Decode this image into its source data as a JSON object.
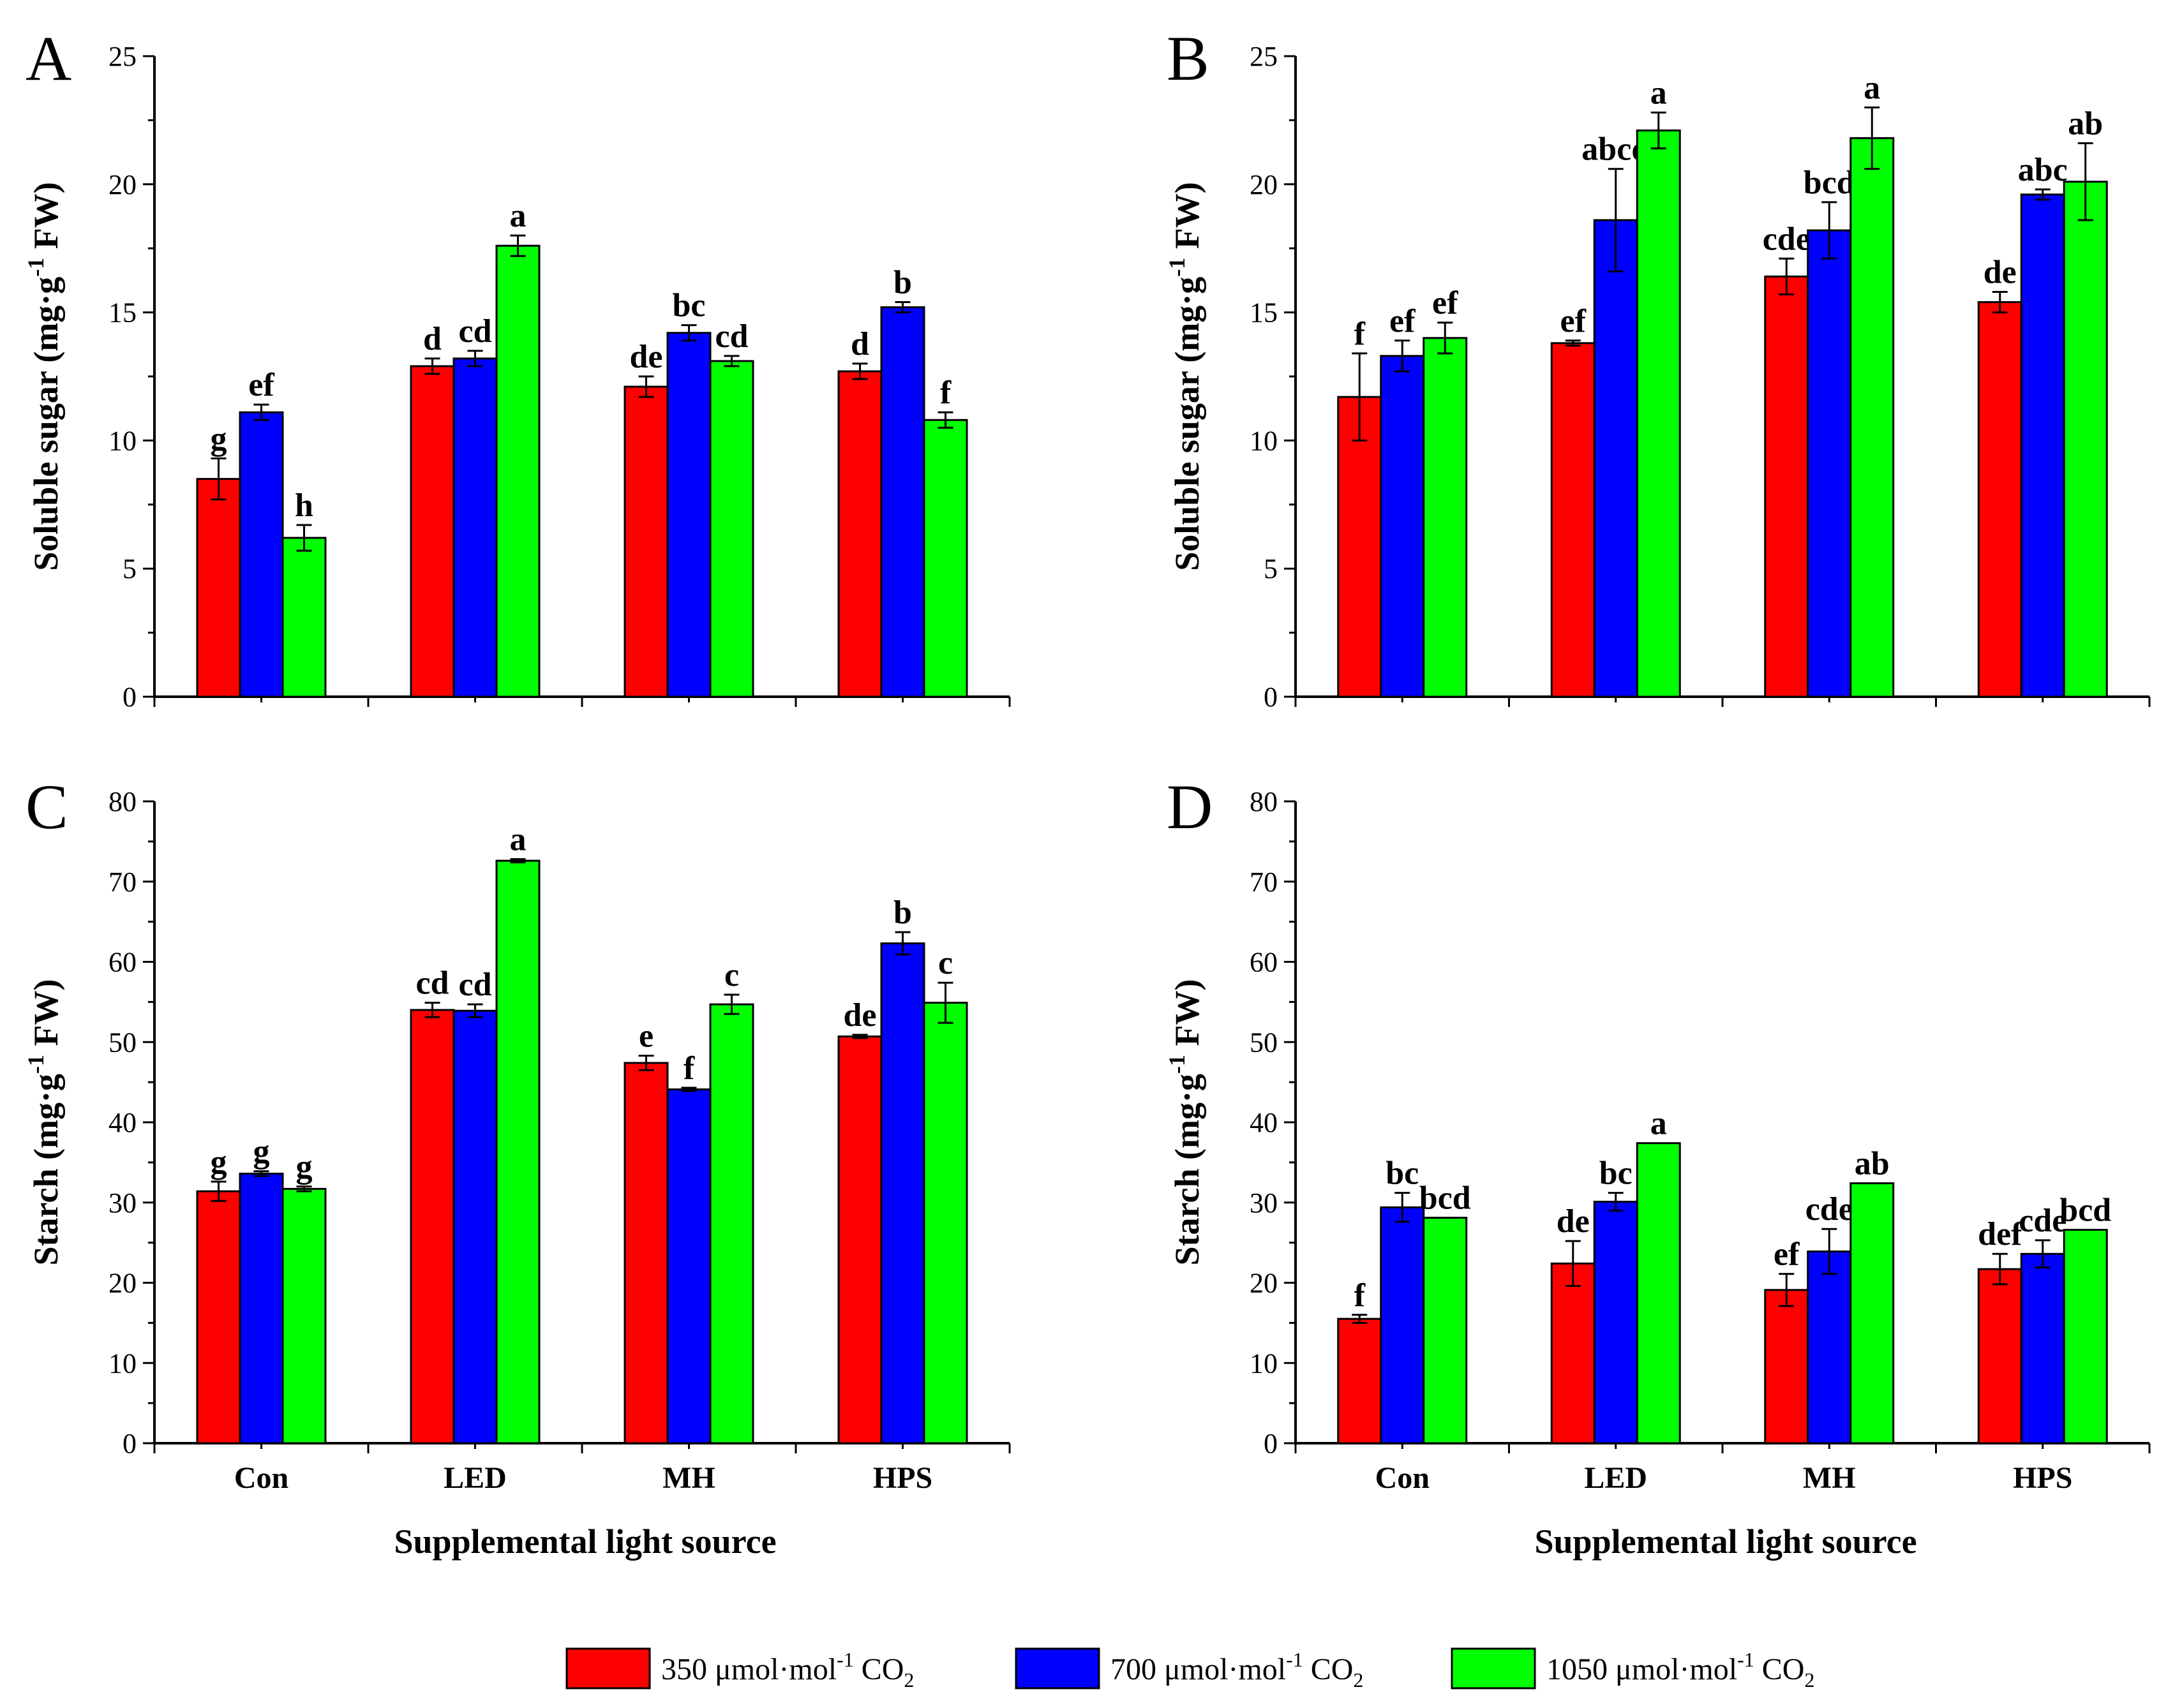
{
  "chart_data": [
    {
      "panel": "A",
      "type": "bar",
      "categories": [
        "Con",
        "LED",
        "MH",
        "HPS"
      ],
      "ylabel": "Soluble sugar (mg·g-1 FW)",
      "ylabel_parts": {
        "pre": "Soluble sugar (mg·g",
        "sup": "-1",
        "post": " FW)"
      },
      "xlabel": "",
      "ylim": [
        0,
        25
      ],
      "yticks": [
        0,
        5,
        10,
        15,
        20,
        25
      ],
      "series": [
        {
          "name": "350 μmol·mol-1 CO2",
          "values": [
            8.5,
            12.9,
            12.1,
            12.7
          ],
          "errors": [
            0.8,
            0.3,
            0.4,
            0.3
          ],
          "labels": [
            "g",
            "d",
            "de",
            "d"
          ]
        },
        {
          "name": "700 μmol·mol-1 CO2",
          "values": [
            11.1,
            13.2,
            14.2,
            15.2
          ],
          "errors": [
            0.3,
            0.3,
            0.3,
            0.2
          ],
          "labels": [
            "ef",
            "cd",
            "bc",
            "b"
          ]
        },
        {
          "name": "1050 μmol·mol-1 CO2",
          "values": [
            6.2,
            17.6,
            13.1,
            10.8
          ],
          "errors": [
            0.5,
            0.4,
            0.2,
            0.3
          ],
          "labels": [
            "h",
            "a",
            "cd",
            "f"
          ]
        }
      ]
    },
    {
      "panel": "B",
      "type": "bar",
      "categories": [
        "Con",
        "LED",
        "MH",
        "HPS"
      ],
      "ylabel": "Soluble sugar (mg·g-1 FW)",
      "ylabel_parts": {
        "pre": "Soluble sugar (mg·g",
        "sup": "-1",
        "post": " FW)"
      },
      "xlabel": "",
      "ylim": [
        0,
        25
      ],
      "yticks": [
        0,
        5,
        10,
        15,
        20,
        25
      ],
      "series": [
        {
          "name": "350 μmol·mol-1 CO2",
          "values": [
            11.7,
            13.8,
            16.4,
            15.4
          ],
          "errors": [
            1.7,
            0.1,
            0.7,
            0.4
          ],
          "labels": [
            "f",
            "ef",
            "cde",
            "de"
          ]
        },
        {
          "name": "700 μmol·mol-1 CO2",
          "values": [
            13.3,
            18.6,
            18.2,
            19.6
          ],
          "errors": [
            0.6,
            2.0,
            1.1,
            0.2
          ],
          "labels": [
            "ef",
            "abcd",
            "bcd",
            "abc"
          ]
        },
        {
          "name": "1050 μmol·mol-1 CO2",
          "values": [
            14.0,
            22.1,
            21.8,
            20.1
          ],
          "errors": [
            0.6,
            0.7,
            1.2,
            1.5
          ],
          "labels": [
            "ef",
            "a",
            "a",
            "ab"
          ]
        }
      ]
    },
    {
      "panel": "C",
      "type": "bar",
      "categories": [
        "Con",
        "LED",
        "MH",
        "HPS"
      ],
      "ylabel": "Starch (mg·g-1 FW)",
      "ylabel_parts": {
        "pre": "Starch (mg·g",
        "sup": "-1",
        "post": " FW)"
      },
      "xlabel": "Supplemental light source",
      "ylim": [
        0,
        80
      ],
      "yticks": [
        0,
        10,
        20,
        30,
        40,
        50,
        60,
        70,
        80
      ],
      "series": [
        {
          "name": "350 μmol·mol-1 CO2",
          "values": [
            31.4,
            54.0,
            47.4,
            50.7
          ],
          "errors": [
            1.2,
            0.9,
            0.9,
            0.2
          ],
          "labels": [
            "g",
            "cd",
            "e",
            "de"
          ]
        },
        {
          "name": "700 μmol·mol-1 CO2",
          "values": [
            33.6,
            53.9,
            44.1,
            62.3
          ],
          "errors": [
            0.3,
            0.8,
            0.2,
            1.4
          ],
          "labels": [
            "g",
            "cd",
            "f",
            "b"
          ]
        },
        {
          "name": "1050 μmol·mol-1 CO2",
          "values": [
            31.7,
            72.6,
            54.7,
            54.9
          ],
          "errors": [
            0.3,
            0.2,
            1.2,
            2.5
          ],
          "labels": [
            "g",
            "a",
            "c",
            "c"
          ]
        }
      ]
    },
    {
      "panel": "D",
      "type": "bar",
      "categories": [
        "Con",
        "LED",
        "MH",
        "HPS"
      ],
      "ylabel": "Starch (mg·g-1 FW)",
      "ylabel_parts": {
        "pre": "Starch (mg·g",
        "sup": "-1",
        "post": " FW)"
      },
      "xlabel": "Supplemental light source",
      "ylim": [
        0,
        80
      ],
      "yticks": [
        0,
        10,
        20,
        30,
        40,
        50,
        60,
        70,
        80
      ],
      "series": [
        {
          "name": "350 μmol·mol-1 CO2",
          "values": [
            15.5,
            22.4,
            19.1,
            21.7
          ],
          "errors": [
            0.5,
            2.8,
            2.0,
            1.9
          ],
          "labels": [
            "f",
            "de",
            "ef",
            "def"
          ]
        },
        {
          "name": "700 μmol·mol-1 CO2",
          "values": [
            29.4,
            30.1,
            23.9,
            23.6
          ],
          "errors": [
            1.8,
            1.1,
            2.8,
            1.7
          ],
          "labels": [
            "bc",
            "bc",
            "cde",
            "cde"
          ]
        },
        {
          "name": "1050 μmol·mol-1 CO2",
          "values": [
            28.1,
            37.4,
            32.4,
            26.6
          ],
          "errors": [
            0,
            0,
            0,
            0
          ],
          "labels": [
            "bcd",
            "a",
            "ab",
            "bcd"
          ]
        }
      ]
    }
  ],
  "legend": {
    "items": [
      {
        "pre": "350 μmol·mol",
        "sup": "-1",
        "mid": " CO",
        "sub": "2",
        "color": "#ff0000"
      },
      {
        "pre": "700 μmol·mol",
        "sup": "-1",
        "mid": " CO",
        "sub": "2",
        "color": "#0000ff"
      },
      {
        "pre": "1050 μmol·mol",
        "sup": "-1",
        "mid": " CO",
        "sub": "2",
        "color": "#00ff00"
      }
    ]
  },
  "colors": [
    "#ff0000",
    "#0000ff",
    "#00ff00"
  ]
}
